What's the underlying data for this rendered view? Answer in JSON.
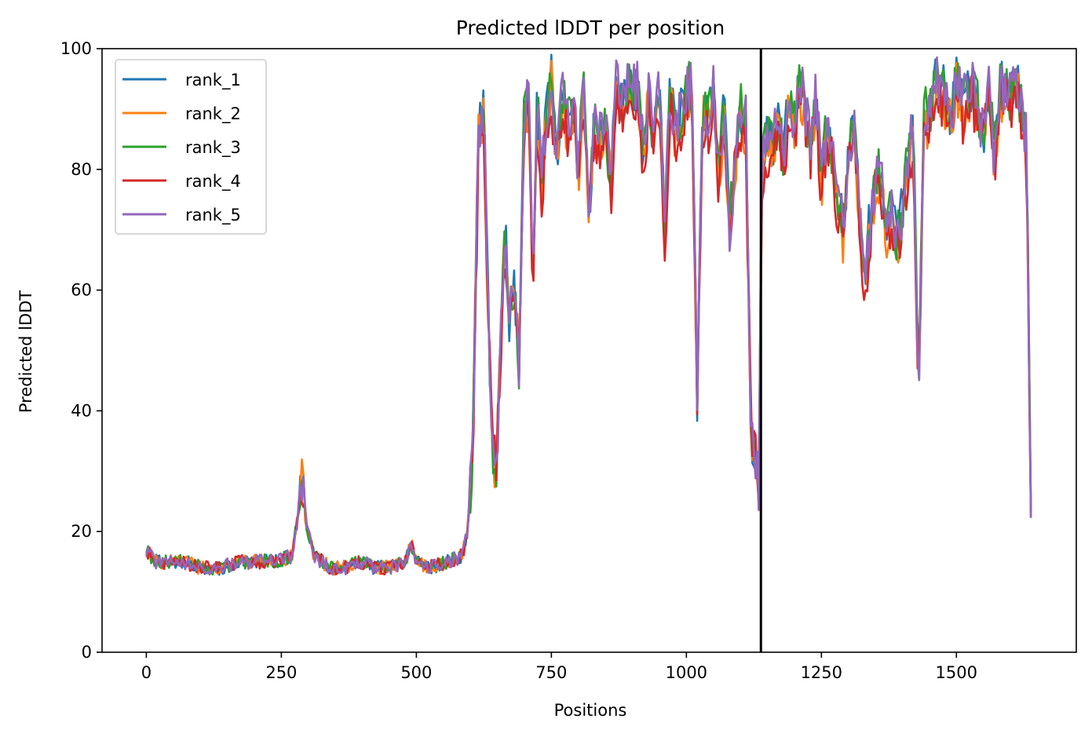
{
  "chart_data": {
    "type": "line",
    "title": "Predicted lDDT per position",
    "xlabel": "Positions",
    "ylabel": "Predicted lDDT",
    "xlim": [
      -82,
      1722
    ],
    "ylim": [
      0,
      100
    ],
    "xticks": [
      0,
      250,
      500,
      750,
      1000,
      1250,
      1500
    ],
    "yticks": [
      0,
      20,
      40,
      60,
      80,
      100
    ],
    "vline_x": 1138,
    "grid": false,
    "legend_position": "top-left",
    "series": [
      {
        "name": "rank_1",
        "color": "#1f77b4"
      },
      {
        "name": "rank_2",
        "color": "#ff7f0e"
      },
      {
        "name": "rank_3",
        "color": "#2ca02c"
      },
      {
        "name": "rank_4",
        "color": "#d62728"
      },
      {
        "name": "rank_5",
        "color": "#9467bd"
      }
    ],
    "profile_x": [
      0,
      15,
      30,
      50,
      70,
      100,
      140,
      170,
      200,
      240,
      270,
      280,
      288,
      296,
      310,
      340,
      370,
      385,
      400,
      420,
      450,
      480,
      490,
      500,
      520,
      560,
      585,
      595,
      605,
      615,
      625,
      632,
      640,
      648,
      656,
      664,
      672,
      680,
      690,
      700,
      708,
      716,
      724,
      732,
      740,
      750,
      760,
      770,
      780,
      790,
      800,
      810,
      820,
      830,
      840,
      850,
      860,
      870,
      880,
      890,
      900,
      910,
      920,
      930,
      940,
      950,
      960,
      970,
      980,
      990,
      1000,
      1010,
      1020,
      1030,
      1040,
      1050,
      1060,
      1070,
      1080,
      1090,
      1100,
      1110,
      1120,
      1128,
      1134,
      1140,
      1150,
      1160,
      1170,
      1180,
      1190,
      1200,
      1210,
      1220,
      1230,
      1240,
      1250,
      1260,
      1270,
      1280,
      1290,
      1300,
      1310,
      1320,
      1330,
      1340,
      1350,
      1360,
      1370,
      1380,
      1390,
      1400,
      1410,
      1420,
      1430,
      1440,
      1450,
      1460,
      1470,
      1480,
      1490,
      1500,
      1510,
      1520,
      1530,
      1540,
      1550,
      1560,
      1570,
      1580,
      1590,
      1600,
      1610,
      1620,
      1630,
      1638
    ],
    "profile_y": [
      17,
      15,
      15,
      15,
      15,
      14,
      14,
      15,
      15,
      15,
      16,
      22,
      29,
      21,
      16,
      14,
      14,
      15,
      15,
      14,
      14,
      15,
      18,
      15,
      14,
      15,
      16,
      20,
      35,
      87,
      90,
      60,
      34,
      30,
      50,
      72,
      55,
      62,
      48,
      92,
      90,
      62,
      92,
      78,
      88,
      95,
      82,
      93,
      88,
      92,
      80,
      94,
      73,
      88,
      85,
      88,
      78,
      95,
      90,
      94,
      92,
      95,
      82,
      93,
      85,
      95,
      70,
      94,
      85,
      90,
      92,
      95,
      42,
      90,
      88,
      95,
      80,
      90,
      70,
      82,
      90,
      88,
      36,
      33,
      28,
      80,
      86,
      84,
      90,
      82,
      92,
      88,
      95,
      90,
      85,
      92,
      78,
      88,
      83,
      76,
      70,
      82,
      88,
      75,
      60,
      72,
      78,
      80,
      70,
      75,
      68,
      74,
      82,
      88,
      42,
      90,
      88,
      96,
      94,
      92,
      88,
      95,
      91,
      92,
      94,
      90,
      86,
      94,
      82,
      93,
      94,
      92,
      95,
      90,
      85,
      22
    ]
  }
}
